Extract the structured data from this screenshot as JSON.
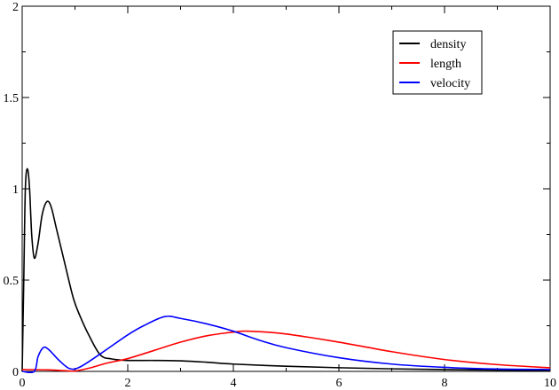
{
  "chart_data": {
    "type": "line",
    "title": "",
    "xlabel": "",
    "ylabel": "",
    "xlim": [
      0,
      10
    ],
    "ylim": [
      0,
      2
    ],
    "xticks": [
      "0",
      "2",
      "4",
      "6",
      "8",
      "10"
    ],
    "yticks": [
      "0",
      "0.5",
      "1",
      "1.5",
      "2"
    ],
    "grid": false,
    "legend_placement": "top-right",
    "series": [
      {
        "name": "density",
        "color": "#000000",
        "x": [
          0,
          0.03,
          0.06,
          0.1,
          0.14,
          0.18,
          0.23,
          0.3,
          0.38,
          0.47,
          0.55,
          0.65,
          0.8,
          0.97,
          1.1,
          1.26,
          1.48,
          1.7,
          2,
          2.5,
          3,
          3.5,
          4,
          5,
          6,
          7,
          8,
          9,
          10
        ],
        "y": [
          0,
          0.5,
          1.0,
          1.11,
          1.0,
          0.75,
          0.62,
          0.7,
          0.86,
          0.93,
          0.9,
          0.78,
          0.6,
          0.4,
          0.3,
          0.2,
          0.09,
          0.068,
          0.06,
          0.06,
          0.058,
          0.05,
          0.04,
          0.028,
          0.02,
          0.014,
          0.01,
          0.007,
          0.005
        ]
      },
      {
        "name": "length",
        "color": "#ff0000",
        "x": [
          0,
          0.5,
          0.8,
          1,
          1.3,
          1.6,
          2,
          2.5,
          3,
          3.5,
          4,
          4.3,
          5,
          6,
          7,
          8,
          9,
          10
        ],
        "y": [
          0.01,
          0.008,
          0.004,
          0.002,
          0.02,
          0.045,
          0.07,
          0.115,
          0.16,
          0.195,
          0.215,
          0.22,
          0.205,
          0.16,
          0.108,
          0.065,
          0.037,
          0.02
        ]
      },
      {
        "name": "velocity",
        "color": "#0000ff",
        "x": [
          0,
          0.23,
          0.3,
          0.4,
          0.5,
          0.7,
          0.9,
          1.1,
          1.5,
          2,
          2.3,
          2.7,
          3,
          3.5,
          4,
          4.5,
          5,
          6,
          7,
          8,
          9,
          10
        ],
        "y": [
          0,
          0,
          0.08,
          0.13,
          0.12,
          0.06,
          0.015,
          0.025,
          0.1,
          0.2,
          0.25,
          0.3,
          0.29,
          0.26,
          0.22,
          0.17,
          0.13,
          0.075,
          0.04,
          0.022,
          0.013,
          0.01
        ]
      }
    ]
  }
}
